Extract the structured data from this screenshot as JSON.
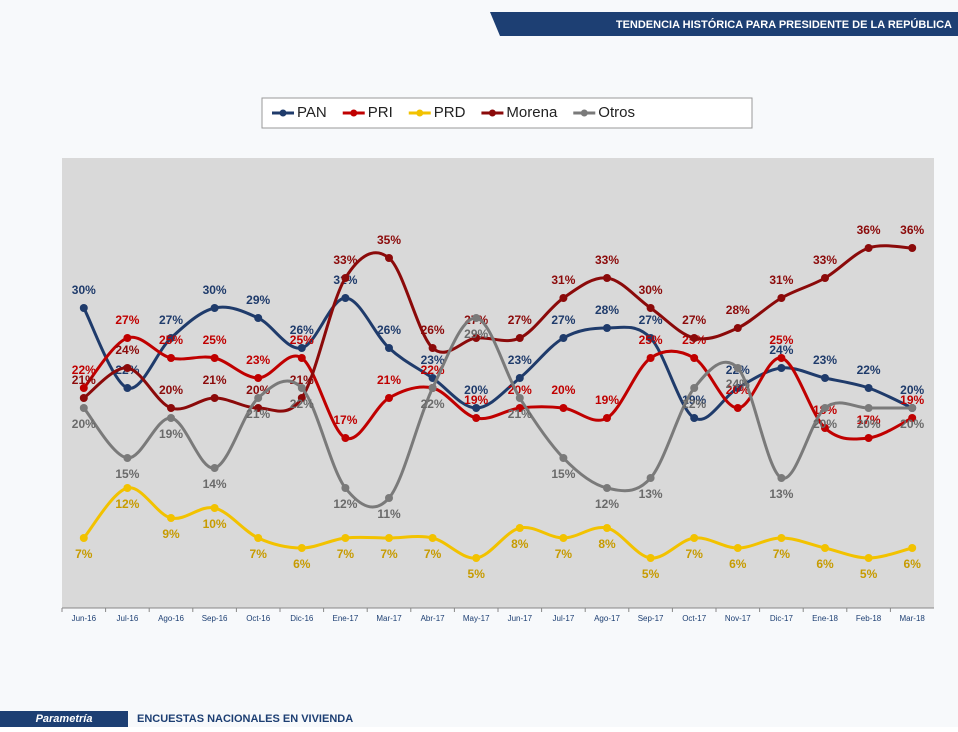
{
  "header": {
    "title": "TENDENCIA HISTÓRICA PARA PRESIDENTE DE LA REPÚBLICA"
  },
  "footer": {
    "brand": "Parametría",
    "text": "ENCUESTAS NACIONALES  EN VIVIENDA"
  },
  "chart_data": {
    "type": "line",
    "categories": [
      "Jun-16",
      "Jul-16",
      "Ago-16",
      "Sep-16",
      "Oct-16",
      "Dic-16",
      "Ene-17",
      "Mar-17",
      "Abr-17",
      "May-17",
      "Jun-17",
      "Jul-17",
      "Ago-17",
      "Sep-17",
      "Oct-17",
      "Nov-17",
      "Dic-17",
      "Ene-18",
      "Feb-18",
      "Mar-18"
    ],
    "ylim": [
      0,
      45
    ],
    "legend": "top",
    "series": [
      {
        "name": "PAN",
        "color": "#1f3b6b",
        "values": [
          30,
          22,
          27,
          30,
          29,
          26,
          31,
          26,
          23,
          20,
          23,
          27,
          28,
          27,
          19,
          22,
          24,
          23,
          22,
          20
        ],
        "value_labels": [
          "30%",
          "22%",
          "27%",
          "30%",
          "29%",
          "26%",
          "31%",
          "26%",
          "23%",
          "20%",
          "23%",
          "27%",
          "28%",
          "27%",
          "19%",
          "22%",
          "24%",
          "23%",
          "22%",
          "20%"
        ]
      },
      {
        "name": "PRI",
        "color": "#c00000",
        "values": [
          22,
          27,
          25,
          25,
          23,
          25,
          17,
          21,
          22,
          19,
          20,
          20,
          19,
          25,
          25,
          20,
          25,
          18,
          17,
          19
        ],
        "value_labels": [
          "22%",
          "27%",
          "25%",
          "25%",
          "23%",
          "25%",
          "17%",
          "21%",
          "22%",
          "19%",
          "20%",
          "20%",
          "19%",
          "25%",
          "25%",
          "20%",
          "25%",
          "18%",
          "17%",
          "19%"
        ]
      },
      {
        "name": "PRD",
        "color": "#f2c200",
        "values": [
          7,
          12,
          9,
          10,
          7,
          6,
          7,
          7,
          7,
          5,
          8,
          7,
          8,
          5,
          7,
          6,
          7,
          6,
          5,
          6
        ],
        "value_labels": [
          "7%",
          "12%",
          "9%",
          "10%",
          "7%",
          "6%",
          "7%",
          "7%",
          "7%",
          "5%",
          "8%",
          "7%",
          "8%",
          "5%",
          "7%",
          "6%",
          "7%",
          "6%",
          "5%",
          "6%"
        ]
      },
      {
        "name": "Morena",
        "color": "#8b0a0a",
        "values": [
          21,
          24,
          20,
          21,
          20,
          21,
          33,
          35,
          26,
          27,
          27,
          31,
          33,
          30,
          27,
          28,
          31,
          33,
          36,
          36
        ],
        "value_labels": [
          "21%",
          "24%",
          "20%",
          "21%",
          "20%",
          "21%",
          "33%",
          "35%",
          "26%",
          "27%",
          "27%",
          "31%",
          "33%",
          "30%",
          "27%",
          "28%",
          "31%",
          "33%",
          "36%",
          "36%"
        ]
      },
      {
        "name": "Otros",
        "color": "#7a7a7a",
        "values": [
          20,
          15,
          19,
          14,
          21,
          22,
          12,
          11,
          22,
          29,
          21,
          15,
          12,
          13,
          22,
          24,
          13,
          20,
          20,
          20
        ],
        "value_labels": [
          "20%",
          "15%",
          "19%",
          "14%",
          "21%",
          "22%",
          "12%",
          "11%",
          "22%",
          "29%",
          "21%",
          "15%",
          "12%",
          "13%",
          "22%",
          "24%",
          "13%",
          "20%",
          "20%",
          "20%"
        ]
      }
    ]
  }
}
